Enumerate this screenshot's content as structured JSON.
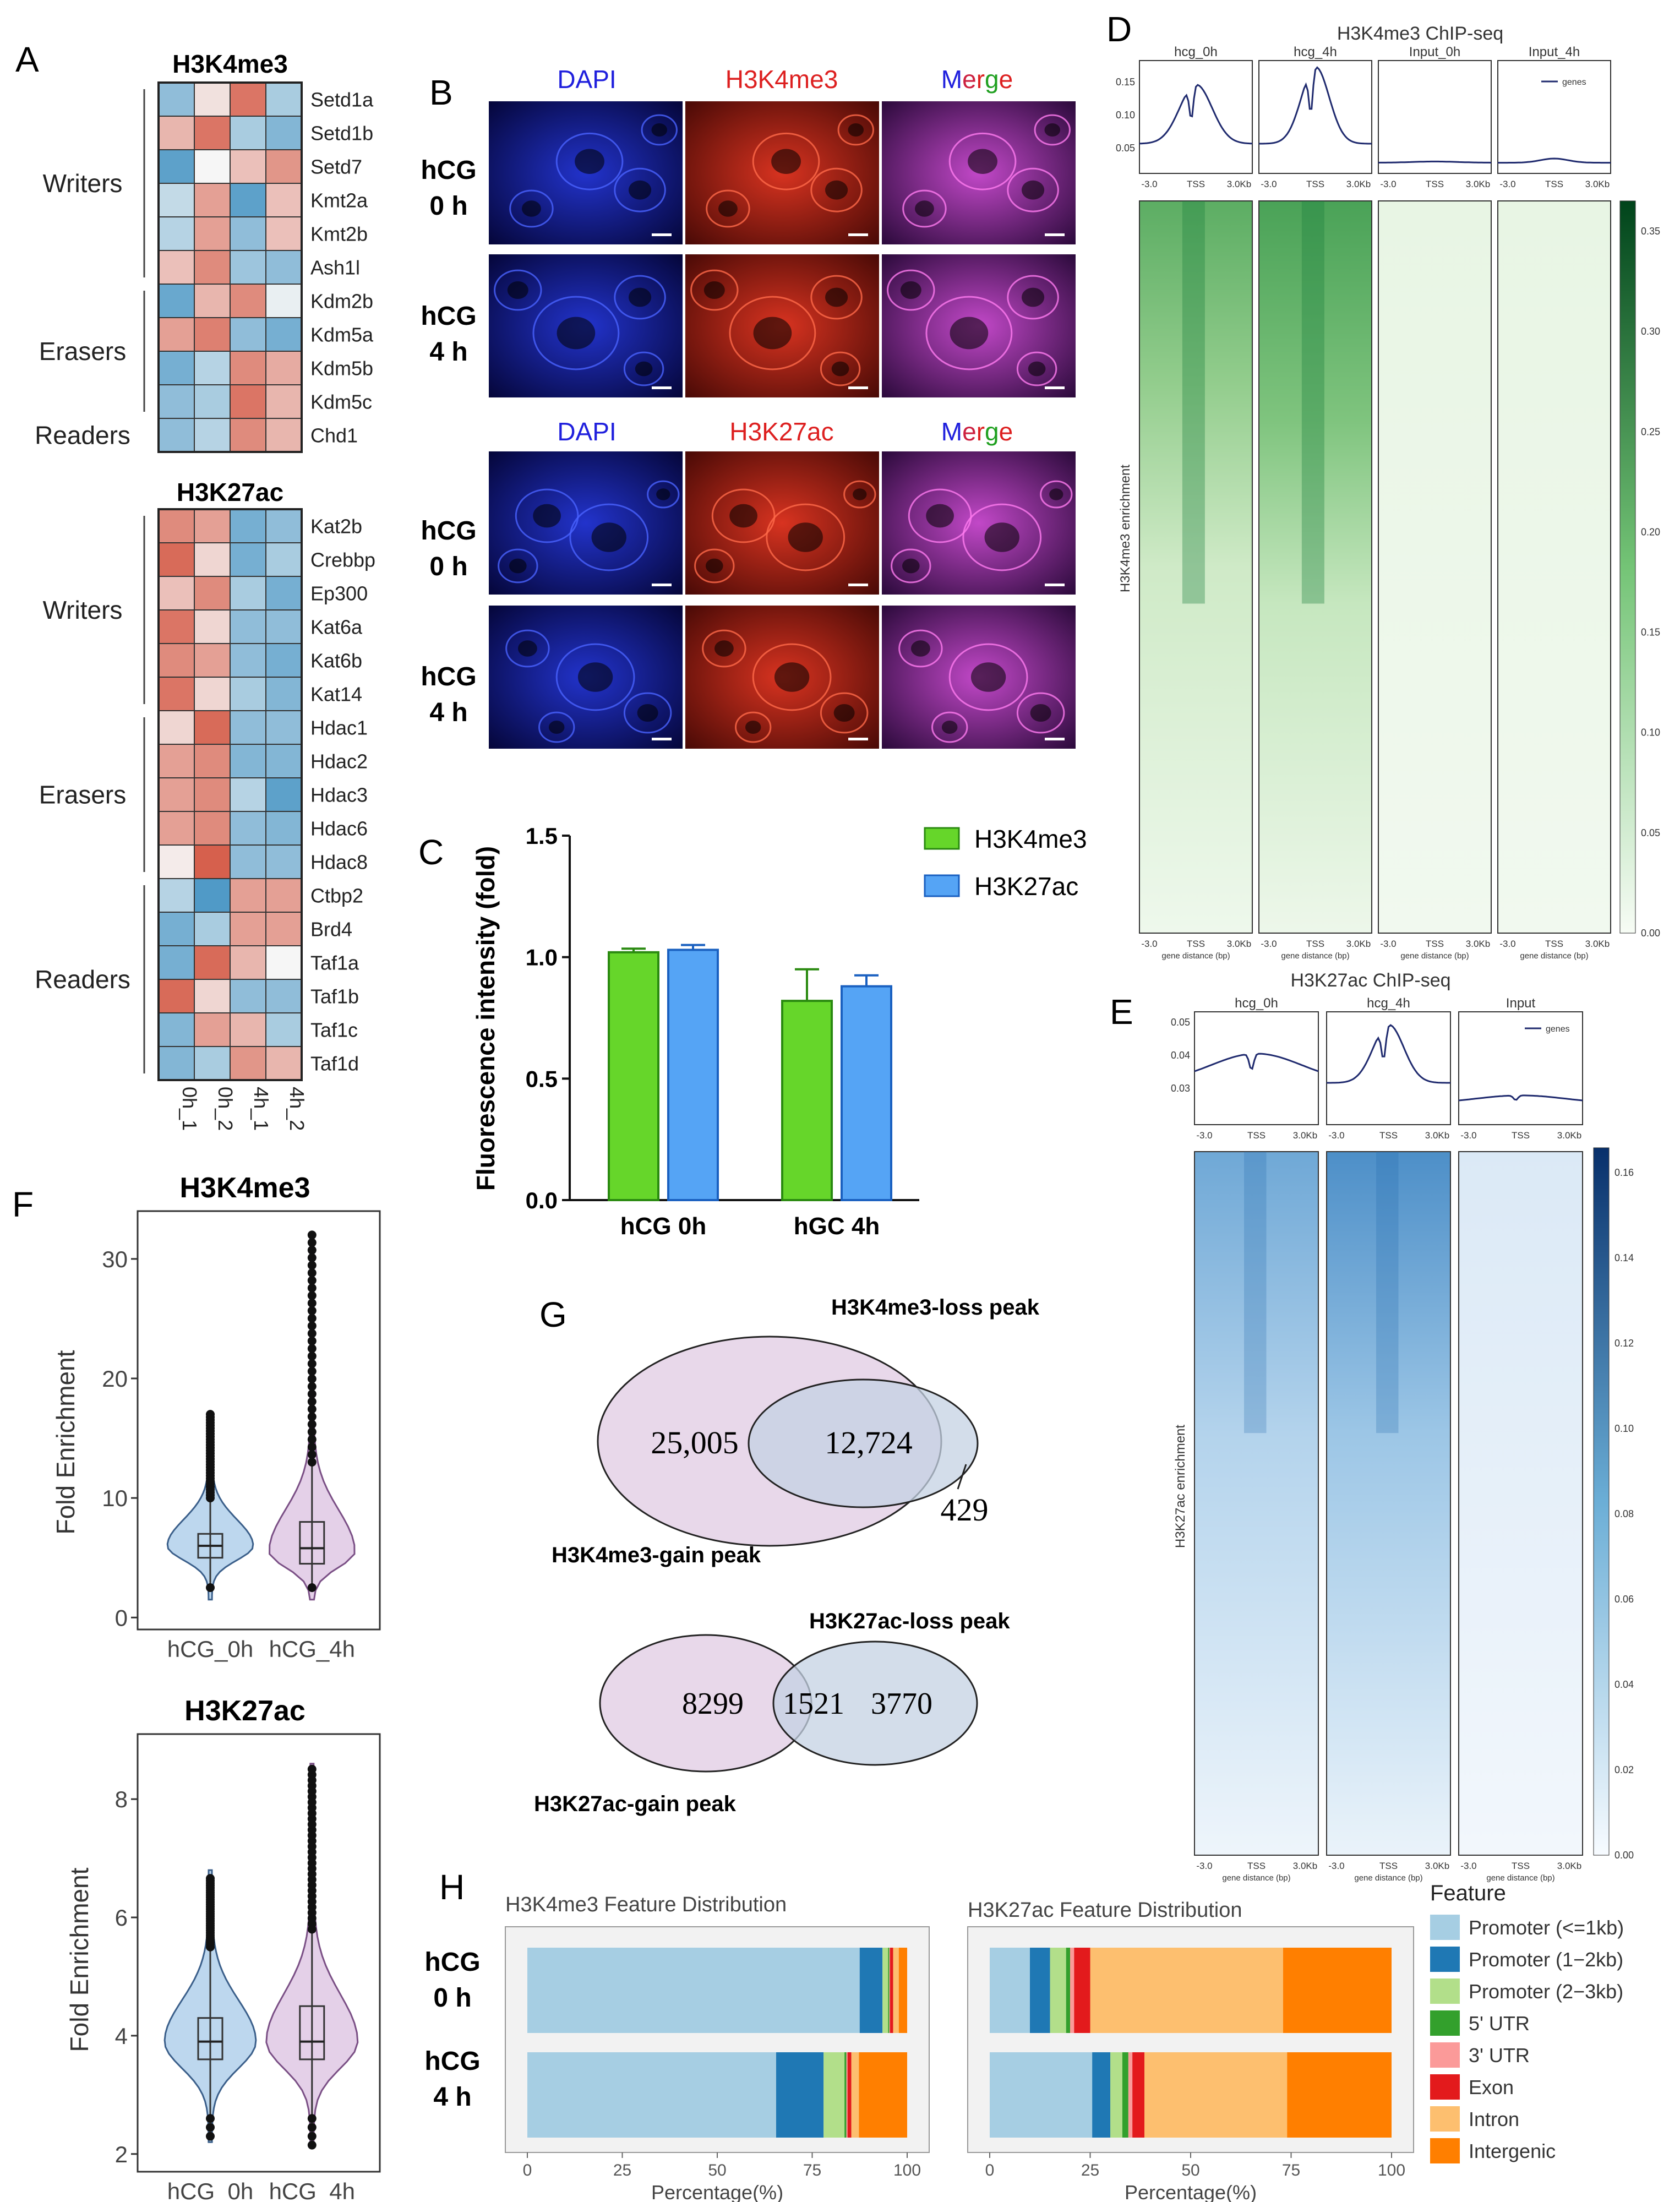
{
  "panel_labels": [
    "A",
    "B",
    "C",
    "D",
    "E",
    "F",
    "G",
    "H"
  ],
  "panelA": {
    "cols": [
      "0h_1",
      "0h_2",
      "4h_1",
      "4h_2"
    ],
    "h3k4me3": {
      "title": "H3K4me3",
      "genes": [
        "Setd1a",
        "Setd1b",
        "Setd7",
        "Kmt2a",
        "Kmt2b",
        "Ash1l",
        "Kdm2b",
        "Kdm5a",
        "Kdm5b",
        "Kdm5c",
        "Chd1"
      ],
      "matrix": [
        [
          -0.8,
          0.2,
          1.2,
          -0.6
        ],
        [
          0.6,
          1.2,
          -0.6,
          -0.9
        ],
        [
          -1.2,
          0.0,
          0.5,
          0.9
        ],
        [
          -0.4,
          0.8,
          -1.2,
          0.5
        ],
        [
          -0.5,
          0.8,
          -0.8,
          0.5
        ],
        [
          0.5,
          1.0,
          -0.7,
          -0.8
        ],
        [
          -1.1,
          0.6,
          1.0,
          -0.1
        ],
        [
          0.8,
          1.1,
          -0.8,
          -1.0
        ],
        [
          -1.0,
          -0.5,
          1.0,
          0.7
        ],
        [
          -0.8,
          -0.6,
          1.2,
          0.6
        ],
        [
          -0.8,
          -0.5,
          1.0,
          0.6
        ]
      ],
      "groups": [
        {
          "label": "Writers",
          "start": 0,
          "end": 5
        },
        {
          "label": "Erasers",
          "start": 6,
          "end": 9
        },
        {
          "label": "Readers",
          "start": 10,
          "end": 10
        }
      ]
    },
    "h3k27ac": {
      "title": "H3K27ac",
      "genes": [
        "Kat2b",
        "Crebbp",
        "Ep300",
        "Kat6a",
        "Kat6b",
        "Kat14",
        "Hdac1",
        "Hdac2",
        "Hdac3",
        "Hdac6",
        "Hdac8",
        "Ctbp2",
        "Brd4",
        "Taf1a",
        "Taf1b",
        "Taf1c",
        "Taf1d"
      ],
      "matrix": [
        [
          1.0,
          0.8,
          -1.0,
          -0.8
        ],
        [
          1.3,
          0.3,
          -1.0,
          -0.6
        ],
        [
          0.5,
          1.0,
          -0.6,
          -1.0
        ],
        [
          1.2,
          0.3,
          -0.8,
          -0.8
        ],
        [
          1.0,
          0.8,
          -0.8,
          -1.0
        ],
        [
          1.2,
          0.3,
          -0.6,
          -0.9
        ],
        [
          0.3,
          1.3,
          -0.8,
          -0.8
        ],
        [
          0.8,
          1.0,
          -0.9,
          -0.9
        ],
        [
          0.8,
          1.0,
          -0.5,
          -1.2
        ],
        [
          0.8,
          1.0,
          -0.8,
          -0.9
        ],
        [
          0.1,
          1.4,
          -0.8,
          -0.8
        ],
        [
          -0.5,
          -1.3,
          0.8,
          0.8
        ],
        [
          -1.0,
          -0.6,
          0.8,
          0.8
        ],
        [
          -1.0,
          1.3,
          0.6,
          0.0
        ],
        [
          1.3,
          0.3,
          -0.8,
          -0.8
        ],
        [
          -0.9,
          0.8,
          0.6,
          -0.6
        ],
        [
          -0.9,
          -0.6,
          0.9,
          0.6
        ]
      ],
      "groups": [
        {
          "label": "Writers",
          "start": 0,
          "end": 5
        },
        {
          "label": "Erasers",
          "start": 6,
          "end": 10
        },
        {
          "label": "Readers",
          "start": 11,
          "end": 16
        }
      ]
    }
  },
  "panelB": {
    "channels_top": [
      "DAPI",
      "H3K4me3",
      "Merge"
    ],
    "channels_bottom": [
      "DAPI",
      "H3K27ac",
      "Merge"
    ],
    "row_labels": [
      "hCG",
      "0 h",
      "hCG",
      "4 h"
    ]
  },
  "panelC": {
    "chart_data": {
      "type": "bar",
      "categories": [
        "hCG 0h",
        "hGC 4h"
      ],
      "series": [
        {
          "name": "H3K4me3",
          "values": [
            1.02,
            0.82
          ],
          "errors": [
            0.015,
            0.13
          ],
          "color": "#66d62a"
        },
        {
          "name": "H3K27ac",
          "values": [
            1.03,
            0.88
          ],
          "errors": [
            0.02,
            0.045
          ],
          "color": "#55a4f5"
        }
      ],
      "ylabel": "Fluorescence intensity (fold)",
      "ylim": [
        0,
        1.5
      ],
      "yticks": [
        "0.0",
        "0.5",
        "1.0",
        "1.5"
      ]
    }
  },
  "panelD": {
    "title": "H3K4me3 ChIP-seq",
    "samples": [
      "hcg_0h",
      "hcg_4h",
      "Input_0h",
      "Input_4h"
    ],
    "profile_yticks": [
      "0.15",
      "0.10",
      "0.05"
    ],
    "xticks": [
      "-3.0",
      "TSS",
      "3.0Kb"
    ],
    "xlabel": "gene distance (bp)",
    "ylabel": "H3K4me3 enrichment",
    "legend": "genes",
    "colorbar": [
      "0.35",
      "0.30",
      "0.25",
      "0.20",
      "0.15",
      "0.10",
      "0.05",
      "0.00"
    ],
    "profiles": [
      {
        "base": 0.05,
        "peak": 0.15,
        "width": 0.35,
        "dip": true
      },
      {
        "base": 0.05,
        "peak": 0.18,
        "width": 0.3,
        "dip": true
      },
      {
        "base": 0.018,
        "peak": 0.02,
        "width": 0.5,
        "dip": false
      },
      {
        "base": 0.018,
        "peak": 0.025,
        "width": 0.3,
        "dip": false
      }
    ]
  },
  "panelE": {
    "title": "H3K27ac ChIP-seq",
    "samples": [
      "hcg_0h",
      "hcg_4h",
      "Input"
    ],
    "profile_yticks": [
      "0.05",
      "0.04",
      "0.03"
    ],
    "xticks": [
      "-3.0",
      "TSS",
      "3.0Kb"
    ],
    "xlabel": "gene distance (bp)",
    "ylabel": "H3K27ac enrichment",
    "legend": "genes",
    "colorbar": [
      "0.16",
      "0.14",
      "0.12",
      "0.10",
      "0.08",
      "0.06",
      "0.04",
      "0.02",
      "0.00"
    ]
  },
  "panelF": {
    "h3k4me3": {
      "title": "H3K4me3",
      "ylabel": "Fold Enrichment",
      "yticks": [
        "0",
        "10",
        "20",
        "30"
      ],
      "categories": [
        "hCG_0h",
        "hCG_4h"
      ],
      "medians": [
        6.0,
        5.8
      ]
    },
    "h3k27ac": {
      "title": "H3K27ac",
      "ylabel": "Fold Enrichment",
      "yticks": [
        "2",
        "4",
        "6",
        "8"
      ],
      "categories": [
        "hCG_0h",
        "hCG_4h"
      ],
      "medians": [
        3.9,
        3.9
      ]
    }
  },
  "panelG": {
    "venn1": {
      "left_only": "25,005",
      "overlap": "12,724",
      "right_only": "429",
      "left_label": "H3K4me3-gain peak",
      "right_label": "H3K4me3-loss peak"
    },
    "venn2": {
      "left_only": "8299",
      "overlap": "1521",
      "right_only": "3770",
      "left_label": "H3K27ac-gain peak",
      "right_label": "H3K27ac-loss peak"
    }
  },
  "panelH": {
    "left_title": "H3K4me3 Feature Distribution",
    "right_title": "H3K27ac Feature Distribution",
    "row_labels": [
      "hCG",
      "0 h",
      "hCG",
      "4 h"
    ],
    "xlabel": "Percentage(%)",
    "xticks": [
      "0",
      "25",
      "50",
      "75",
      "100"
    ],
    "legend_title": "Feature",
    "features": [
      "Promoter (<=1kb)",
      "Promoter (1−2kb)",
      "Promoter (2−3kb)",
      "5' UTR",
      "3' UTR",
      "Exon",
      "Intron",
      "Intergenic"
    ],
    "colors": [
      "#a6cee3",
      "#1f78b4",
      "#b2df8a",
      "#33a02c",
      "#fb9a99",
      "#e31a1c",
      "#fdbf6f",
      "#ff7f00"
    ],
    "chart_data": {
      "type": "bar",
      "series": [
        {
          "name": "H3K4me3 hCG 0h",
          "values": [
            87.5,
            6.0,
            1.5,
            0.3,
            0.2,
            0.8,
            1.5,
            2.2
          ]
        },
        {
          "name": "H3K4me3 hCG 4h",
          "values": [
            65.5,
            12.5,
            5.5,
            0.5,
            0.3,
            1.0,
            2.0,
            12.7
          ]
        },
        {
          "name": "H3K27ac hCG 0h",
          "values": [
            10.0,
            5.0,
            4.0,
            1.0,
            1.0,
            4.0,
            48.0,
            27.0
          ]
        },
        {
          "name": "H3K27ac hCG 4h",
          "values": [
            25.5,
            4.5,
            3.0,
            1.5,
            1.0,
            3.0,
            35.5,
            26.0
          ]
        }
      ]
    }
  }
}
